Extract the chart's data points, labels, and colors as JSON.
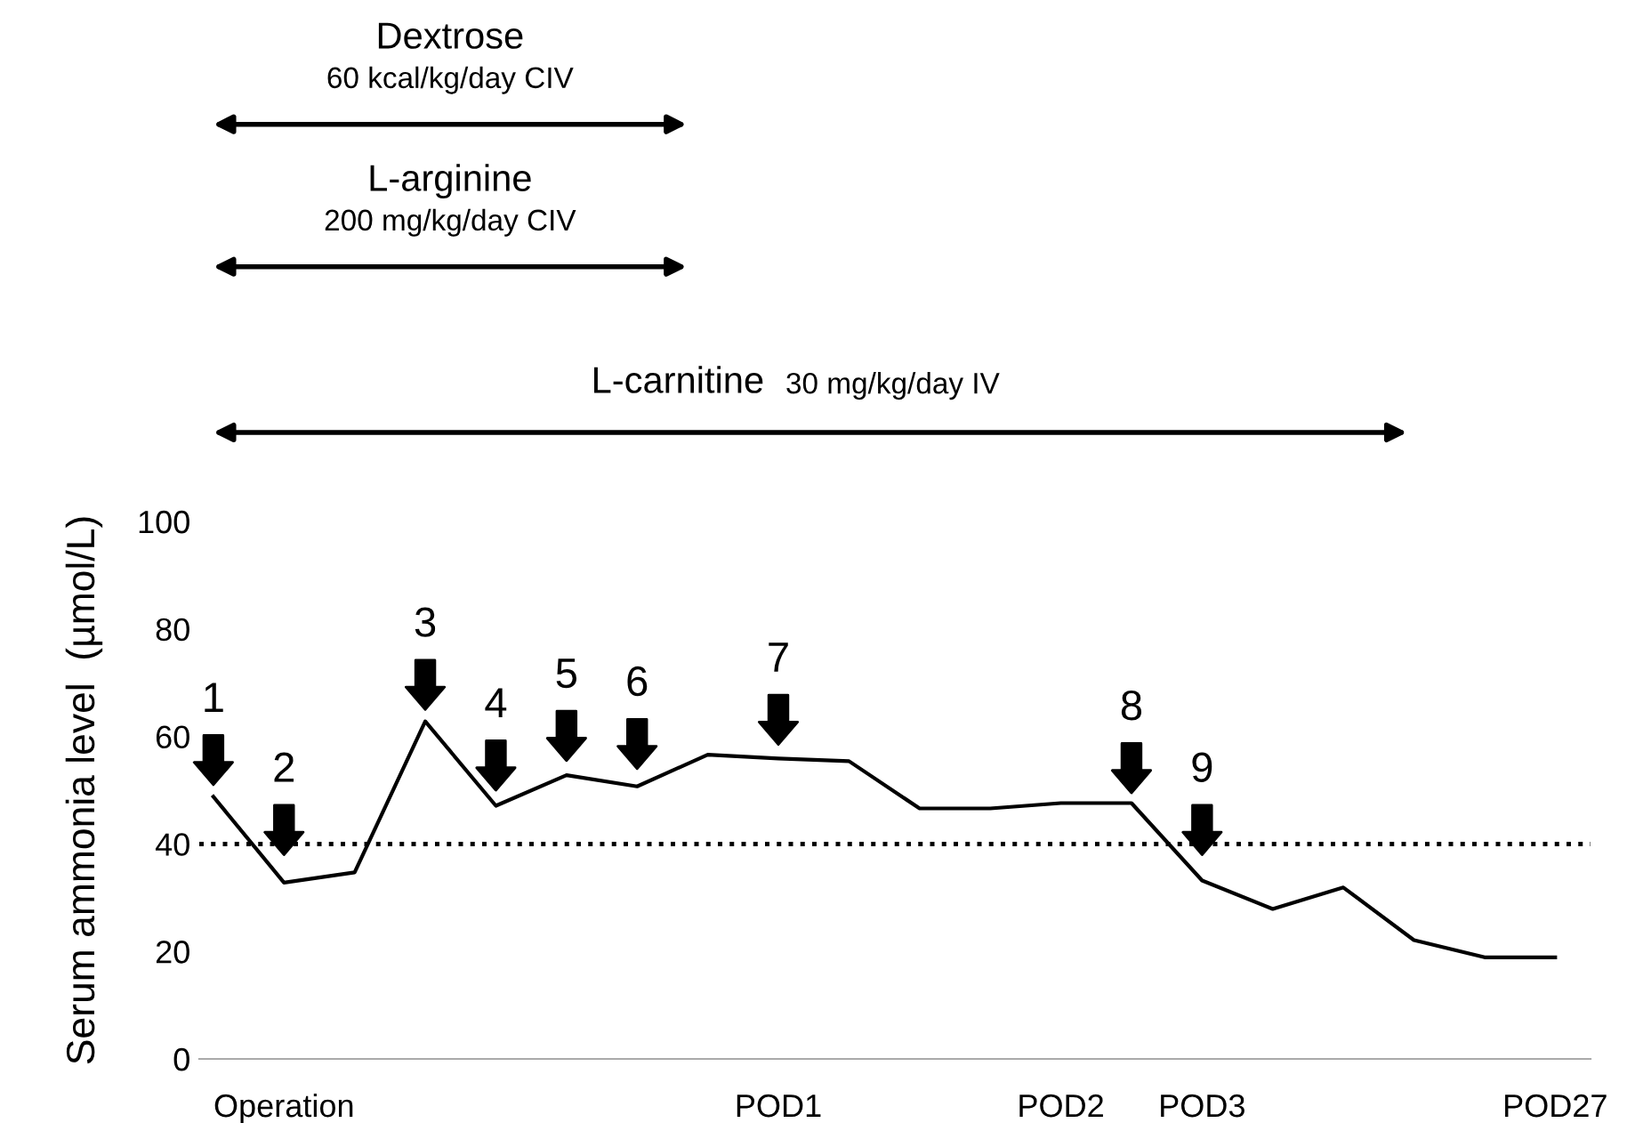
{
  "chart_data": {
    "type": "line",
    "ylabel": "Serum ammonia level  (µmol/L)",
    "categories": [
      null,
      "Operation",
      null,
      null,
      null,
      null,
      null,
      null,
      "POD1",
      null,
      null,
      null,
      "POD2",
      null,
      "POD3",
      null,
      null,
      null,
      null,
      "POD27"
    ],
    "series": [
      {
        "color": "#000000",
        "values": [
          48.8,
          32.8,
          34.7,
          62.8,
          47.1,
          52.8,
          50.7,
          56.6,
          55.9,
          55.4,
          46.6,
          46.6,
          47.6,
          47.6,
          33.2,
          27.9,
          31.9,
          22.1,
          18.9,
          18.9
        ]
      }
    ],
    "ylim": [
      0,
      100
    ],
    "yticks": [
      0,
      20,
      40,
      60,
      80,
      100
    ],
    "grid": false,
    "marker": "none",
    "line_style": "solid",
    "ref_lines": [
      {
        "axis": "y",
        "value": 40,
        "color": "#000000",
        "line_style": "dotted"
      }
    ],
    "annotations": [
      "Dextrose",
      "60 kcal/kg/day CIV",
      "L-arginine",
      "200 mg/kg/day CIV",
      "L-carnitine",
      "30 mg/kg/day IV",
      "1",
      "2",
      "3",
      "4",
      "5",
      "6",
      "7",
      "8",
      "9"
    ]
  }
}
